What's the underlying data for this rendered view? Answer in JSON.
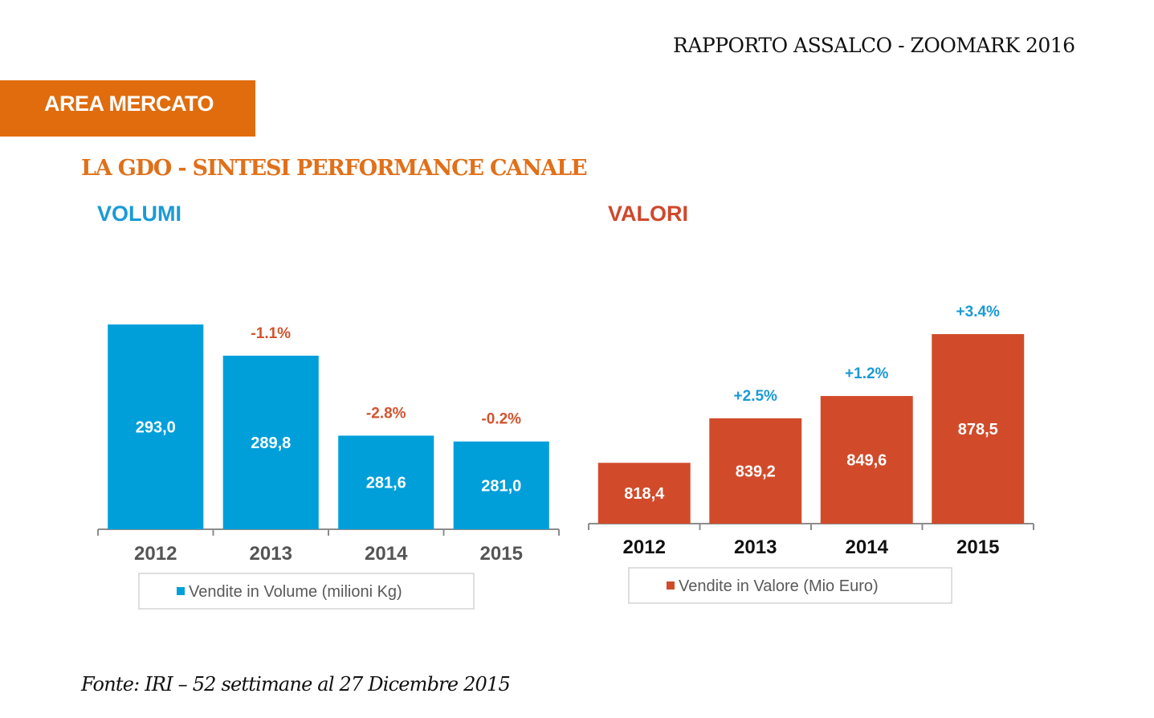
{
  "header": {
    "report_title": "RAPPORTO ASSALCO - ZOOMARK 2016",
    "area_label": "AREA MERCATO",
    "section_title": "LA GDO - SINTESI PERFORMANCE CANALE"
  },
  "footer": {
    "source": "Fonte: IRI – 52 settimane al 27 Dicembre 2015"
  },
  "colors": {
    "banner": "#e06c0e",
    "volume_bar": "#009fda",
    "value_bar": "#d14b2b",
    "negative_change": "#d2532f",
    "positive_change": "#1a9ad6"
  },
  "chart_data": [
    {
      "type": "bar",
      "title": "VOLUMI",
      "categories": [
        "2012",
        "2013",
        "2014",
        "2015"
      ],
      "values": [
        293.0,
        289.8,
        281.6,
        281.0
      ],
      "value_labels": [
        "293,0",
        "289,8",
        "281,6",
        "281,0"
      ],
      "change_labels": [
        "",
        "-1.1%",
        "-2.8%",
        "-0.2%"
      ],
      "legend": "Vendite in Volume (milioni Kg)",
      "legend_placement": "bottom",
      "xlabel": "",
      "ylabel": "",
      "ylim": [
        272,
        293
      ],
      "grid": false
    },
    {
      "type": "bar",
      "title": "VALORI",
      "categories": [
        "2012",
        "2013",
        "2014",
        "2015"
      ],
      "values": [
        818.4,
        839.2,
        849.6,
        878.5
      ],
      "value_labels": [
        "818,4",
        "839,2",
        "849,6",
        "878,5"
      ],
      "change_labels": [
        "",
        "+2.5%",
        "+1.2%",
        "+3.4%"
      ],
      "legend": "Vendite in Valore (Mio Euro)",
      "legend_placement": "bottom",
      "xlabel": "",
      "ylabel": "",
      "ylim": [
        790,
        878.5
      ],
      "grid": false
    }
  ]
}
